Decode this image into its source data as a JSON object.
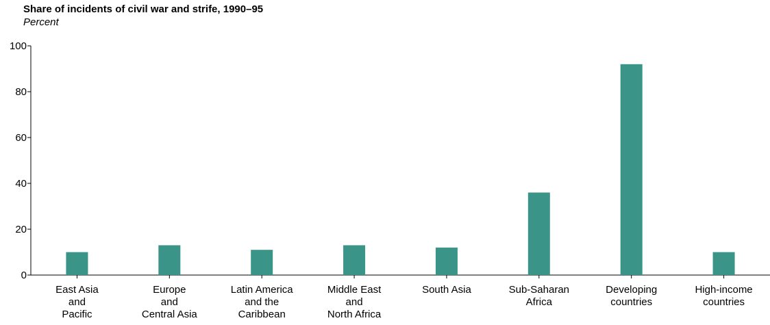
{
  "chart_data": {
    "type": "bar",
    "title": "Share of incidents of civil war and strife, 1990–95",
    "ylabel": "Percent",
    "xlabel": "",
    "ylim": [
      0,
      100
    ],
    "yticks": [
      0,
      20,
      40,
      60,
      80,
      100
    ],
    "grid": false,
    "bar_color": "#3a9488",
    "categories": [
      "East Asia and Pacific",
      "Europe and Central Asia",
      "Latin America and the Caribbean",
      "Middle East and North Africa",
      "South Asia",
      "Sub-Saharan Africa",
      "Developing countries",
      "High-income countries"
    ],
    "category_lines": [
      [
        "East Asia",
        "and",
        "Pacific"
      ],
      [
        "Europe",
        "and",
        "Central Asia"
      ],
      [
        "Latin America",
        "and the",
        "Caribbean"
      ],
      [
        "Middle East",
        "and",
        "North Africa"
      ],
      [
        "South Asia"
      ],
      [
        "Sub-Saharan",
        "Africa"
      ],
      [
        "Developing",
        "countries"
      ],
      [
        "High-income",
        "countries"
      ]
    ],
    "values": [
      10,
      13,
      11,
      13,
      12,
      36,
      92,
      10
    ]
  }
}
